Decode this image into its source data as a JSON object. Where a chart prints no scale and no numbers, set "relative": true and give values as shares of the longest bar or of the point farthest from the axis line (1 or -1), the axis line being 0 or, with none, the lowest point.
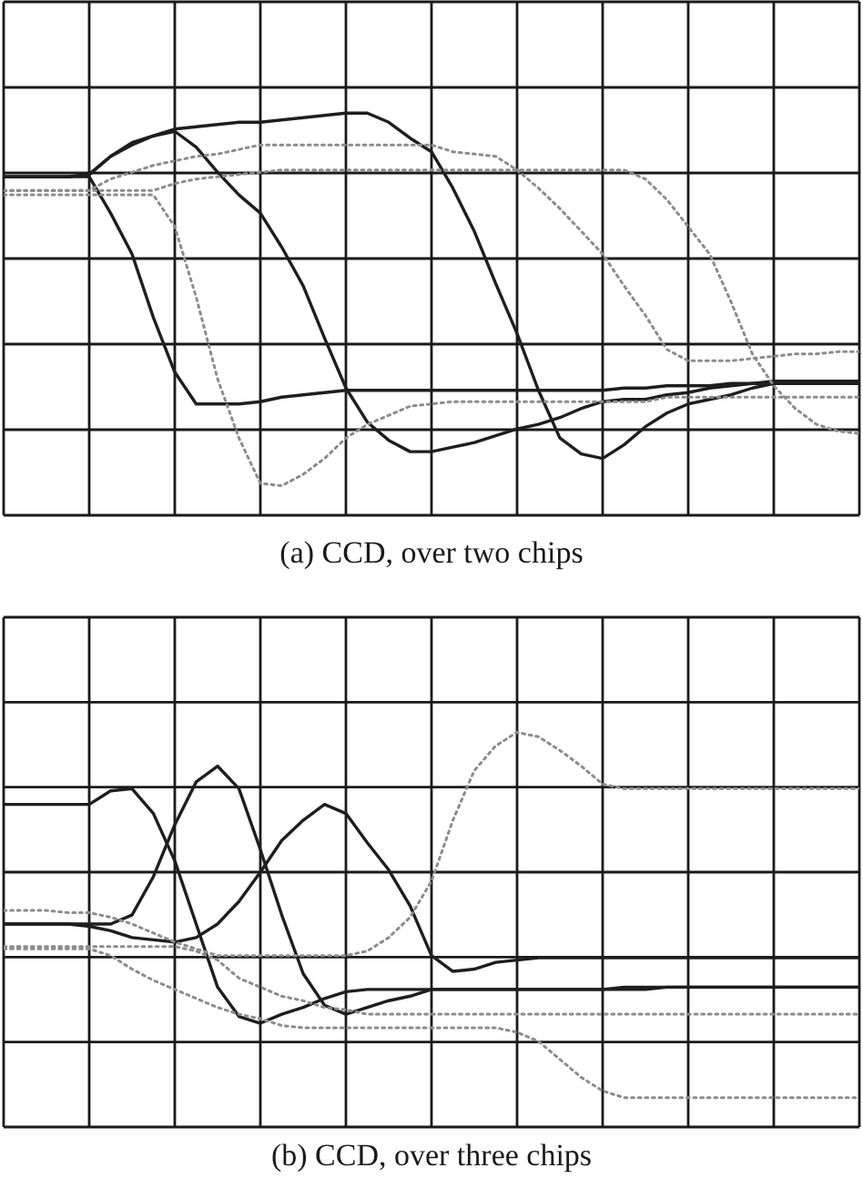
{
  "chart_data": [
    {
      "type": "line",
      "title": "(a) CCD, over two chips",
      "relative": true,
      "grid": true,
      "categories": [
        null,
        null,
        null,
        null,
        null,
        null,
        null,
        null,
        null,
        null,
        null,
        null,
        null,
        null,
        null,
        null,
        null,
        null,
        null,
        null,
        null,
        null,
        null,
        null,
        null,
        null,
        null,
        null,
        null,
        null,
        null,
        null,
        null,
        null,
        null,
        null,
        null,
        null,
        null,
        null,
        null
      ],
      "series": [
        {
          "color": "#1e1e1e",
          "line_style": "solid",
          "values": [
            0.36,
            0.36,
            0.36,
            0.36,
            0.36,
            0.2,
            0.02,
            -0.26,
            -0.5,
            -0.64,
            -0.64,
            -0.64,
            -0.63,
            -0.61,
            -0.6,
            -0.59,
            -0.58,
            -0.58,
            -0.58,
            -0.58,
            -0.58,
            -0.58,
            -0.58,
            -0.58,
            -0.58,
            -0.58,
            -0.58,
            -0.58,
            -0.58,
            -0.57,
            -0.57,
            -0.56,
            -0.56,
            -0.56,
            -0.55,
            -0.55,
            -0.54,
            -0.54,
            -0.54,
            -0.54,
            -0.54
          ]
        },
        {
          "color": "#1e1e1e",
          "line_style": "solid",
          "values": [
            0.36,
            0.36,
            0.36,
            0.36,
            0.37,
            0.45,
            0.51,
            0.54,
            0.56,
            0.49,
            0.38,
            0.28,
            0.2,
            0.05,
            -0.12,
            -0.35,
            -0.57,
            -0.72,
            -0.8,
            -0.85,
            -0.85,
            -0.83,
            -0.81,
            -0.78,
            -0.75,
            -0.73,
            -0.7,
            -0.66,
            -0.63,
            -0.62,
            -0.62,
            -0.6,
            -0.59,
            -0.57,
            -0.56,
            -0.55,
            -0.55,
            -0.54,
            -0.54,
            -0.54,
            -0.54
          ]
        },
        {
          "color": "#1e1e1e",
          "line_style": "solid",
          "values": [
            0.36,
            0.36,
            0.36,
            0.36,
            0.37,
            0.45,
            0.5,
            0.54,
            0.57,
            0.58,
            0.59,
            0.6,
            0.6,
            0.61,
            0.62,
            0.63,
            0.64,
            0.64,
            0.6,
            0.53,
            0.47,
            0.31,
            0.12,
            -0.11,
            -0.33,
            -0.58,
            -0.79,
            -0.86,
            -0.88,
            -0.82,
            -0.74,
            -0.68,
            -0.64,
            -0.62,
            -0.6,
            -0.57,
            -0.55,
            -0.55,
            -0.55,
            -0.55,
            -0.55
          ]
        },
        {
          "color": "#8c8c8c",
          "line_style": "dotted",
          "values": [
            0.28,
            0.28,
            0.28,
            0.28,
            0.28,
            0.28,
            0.28,
            0.28,
            0.14,
            -0.17,
            -0.53,
            -0.79,
            -0.99,
            -1.0,
            -0.95,
            -0.88,
            -0.79,
            -0.73,
            -0.69,
            -0.65,
            -0.64,
            -0.63,
            -0.63,
            -0.63,
            -0.63,
            -0.63,
            -0.63,
            -0.63,
            -0.63,
            -0.63,
            -0.63,
            -0.61,
            -0.61,
            -0.61,
            -0.61,
            -0.61,
            -0.61,
            -0.61,
            -0.61,
            -0.61,
            -0.61
          ]
        },
        {
          "color": "#8c8c8c",
          "line_style": "dotted",
          "values": [
            0.3,
            0.3,
            0.3,
            0.3,
            0.3,
            0.35,
            0.38,
            0.41,
            0.43,
            0.45,
            0.46,
            0.48,
            0.5,
            0.5,
            0.5,
            0.5,
            0.5,
            0.5,
            0.5,
            0.5,
            0.5,
            0.47,
            0.46,
            0.45,
            0.39,
            0.31,
            0.22,
            0.12,
            0.02,
            -0.12,
            -0.25,
            -0.4,
            -0.45,
            -0.45,
            -0.45,
            -0.44,
            -0.43,
            -0.42,
            -0.42,
            -0.41,
            -0.41
          ]
        },
        {
          "color": "#8c8c8c",
          "line_style": "dotted",
          "values": [
            0.3,
            0.3,
            0.3,
            0.3,
            0.3,
            0.3,
            0.3,
            0.3,
            0.33,
            0.35,
            0.36,
            0.37,
            0.38,
            0.39,
            0.39,
            0.39,
            0.39,
            0.39,
            0.39,
            0.39,
            0.39,
            0.39,
            0.39,
            0.39,
            0.39,
            0.39,
            0.39,
            0.39,
            0.39,
            0.39,
            0.35,
            0.26,
            0.14,
            0.02,
            -0.19,
            -0.42,
            -0.56,
            -0.66,
            -0.73,
            -0.76,
            -0.77
          ]
        }
      ]
    },
    {
      "type": "line",
      "title": "(b) CCD, over three chips",
      "relative": true,
      "grid": true,
      "categories": [
        null,
        null,
        null,
        null,
        null,
        null,
        null,
        null,
        null,
        null,
        null,
        null,
        null,
        null,
        null,
        null,
        null,
        null,
        null,
        null,
        null,
        null,
        null,
        null,
        null,
        null,
        null,
        null,
        null,
        null,
        null,
        null,
        null,
        null,
        null,
        null,
        null,
        null,
        null,
        null,
        null
      ],
      "series": [
        {
          "color": "#1e1e1e",
          "line_style": "solid",
          "values": [
            0.3,
            0.3,
            0.3,
            0.3,
            0.3,
            0.36,
            0.37,
            0.26,
            0.05,
            -0.23,
            -0.51,
            -0.64,
            -0.67,
            -0.63,
            -0.6,
            -0.56,
            -0.53,
            -0.52,
            -0.52,
            -0.52,
            -0.52,
            -0.52,
            -0.52,
            -0.52,
            -0.52,
            -0.52,
            -0.52,
            -0.52,
            -0.52,
            -0.51,
            -0.51,
            -0.51,
            -0.51,
            -0.51,
            -0.51,
            -0.51,
            -0.51,
            -0.51,
            -0.51,
            -0.51,
            -0.51
          ]
        },
        {
          "color": "#1e1e1e",
          "line_style": "solid",
          "values": [
            -0.23,
            -0.23,
            -0.23,
            -0.23,
            -0.23,
            -0.23,
            -0.19,
            -0.02,
            0.21,
            0.4,
            0.47,
            0.37,
            0.1,
            -0.19,
            -0.45,
            -0.59,
            -0.63,
            -0.6,
            -0.57,
            -0.55,
            -0.52,
            -0.52,
            -0.52,
            -0.52,
            -0.52,
            -0.52,
            -0.52,
            -0.52,
            -0.52,
            -0.52,
            -0.52,
            -0.51,
            -0.51,
            -0.51,
            -0.51,
            -0.51,
            -0.51,
            -0.51,
            -0.51,
            -0.51,
            -0.51
          ]
        },
        {
          "color": "#1e1e1e",
          "line_style": "solid",
          "values": [
            -0.23,
            -0.23,
            -0.23,
            -0.23,
            -0.24,
            -0.26,
            -0.29,
            -0.3,
            -0.31,
            -0.29,
            -0.23,
            -0.13,
            0.0,
            0.14,
            0.23,
            0.3,
            0.26,
            0.13,
            0.01,
            -0.15,
            -0.37,
            -0.44,
            -0.43,
            -0.4,
            -0.39,
            -0.38,
            -0.38,
            -0.38,
            -0.38,
            -0.38,
            -0.38,
            -0.38,
            -0.38,
            -0.38,
            -0.38,
            -0.38,
            -0.38,
            -0.38,
            -0.38,
            -0.38,
            -0.38
          ]
        },
        {
          "color": "#8c8c8c",
          "line_style": "dotted",
          "values": [
            -0.17,
            -0.17,
            -0.17,
            -0.18,
            -0.18,
            -0.2,
            -0.23,
            -0.27,
            -0.31,
            -0.34,
            -0.37,
            -0.37,
            -0.37,
            -0.37,
            -0.37,
            -0.37,
            -0.37,
            -0.35,
            -0.29,
            -0.2,
            -0.04,
            0.23,
            0.45,
            0.56,
            0.62,
            0.6,
            0.54,
            0.47,
            0.39,
            0.37,
            0.37,
            0.37,
            0.37,
            0.37,
            0.37,
            0.37,
            0.37,
            0.37,
            0.37,
            0.37,
            0.37
          ]
        },
        {
          "color": "#8c8c8c",
          "line_style": "dotted",
          "values": [
            -0.33,
            -0.33,
            -0.33,
            -0.33,
            -0.33,
            -0.33,
            -0.33,
            -0.33,
            -0.33,
            -0.35,
            -0.39,
            -0.47,
            -0.51,
            -0.55,
            -0.57,
            -0.6,
            -0.61,
            -0.63,
            -0.63,
            -0.63,
            -0.63,
            -0.63,
            -0.63,
            -0.63,
            -0.63,
            -0.63,
            -0.63,
            -0.63,
            -0.63,
            -0.63,
            -0.63,
            -0.63,
            -0.63,
            -0.63,
            -0.63,
            -0.63,
            -0.63,
            -0.63,
            -0.63,
            -0.63,
            -0.63
          ]
        },
        {
          "color": "#8c8c8c",
          "line_style": "dotted",
          "values": [
            -0.34,
            -0.34,
            -0.34,
            -0.34,
            -0.34,
            -0.37,
            -0.43,
            -0.48,
            -0.52,
            -0.56,
            -0.6,
            -0.63,
            -0.65,
            -0.68,
            -0.69,
            -0.69,
            -0.69,
            -0.69,
            -0.69,
            -0.69,
            -0.69,
            -0.69,
            -0.69,
            -0.69,
            -0.71,
            -0.75,
            -0.83,
            -0.91,
            -0.97,
            -1.0,
            -1.0,
            -1.0,
            -1.0,
            -1.0,
            -1.0,
            -1.0,
            -1.0,
            -1.0,
            -1.0,
            -1.0,
            -1.0
          ]
        }
      ]
    }
  ]
}
